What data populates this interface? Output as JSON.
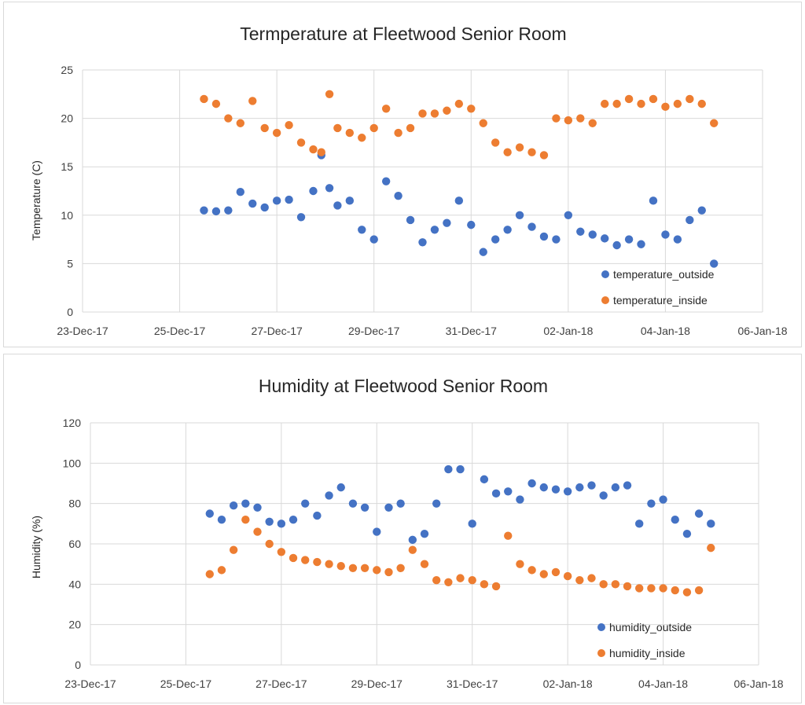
{
  "chart_data": [
    {
      "type": "scatter",
      "title": "Termperature at Fleetwood Senior Room",
      "xlabel": "",
      "ylabel": "Temperature (C)",
      "xlim": [
        "2017-12-23",
        "2018-01-06"
      ],
      "ylim": [
        0,
        25
      ],
      "yticks": [
        0,
        5,
        10,
        15,
        20,
        25
      ],
      "xtick_labels": [
        "23-Dec-17",
        "25-Dec-17",
        "27-Dec-17",
        "29-Dec-17",
        "31-Dec-17",
        "02-Jan-18",
        "04-Jan-18",
        "06-Jan-18"
      ],
      "grid": true,
      "legend_position": "bottom-right",
      "colors": {
        "outside": "#4472c4",
        "inside": "#ed7d31"
      },
      "series": [
        {
          "name": "temperature_outside",
          "x": [
            "2017-12-25 12:00",
            "2017-12-25 18:00",
            "2017-12-26 00:00",
            "2017-12-26 06:00",
            "2017-12-26 12:00",
            "2017-12-26 18:00",
            "2017-12-27 00:00",
            "2017-12-27 06:00",
            "2017-12-27 12:00",
            "2017-12-27 18:00",
            "2017-12-27 22:00",
            "2017-12-28 02:00",
            "2017-12-28 06:00",
            "2017-12-28 12:00",
            "2017-12-28 18:00",
            "2017-12-29 00:00",
            "2017-12-29 06:00",
            "2017-12-29 12:00",
            "2017-12-29 18:00",
            "2017-12-30 00:00",
            "2017-12-30 06:00",
            "2017-12-30 12:00",
            "2017-12-30 18:00",
            "2017-12-31 00:00",
            "2017-12-31 06:00",
            "2017-12-31 12:00",
            "2017-12-31 18:00",
            "2018-01-01 00:00",
            "2018-01-01 06:00",
            "2018-01-01 12:00",
            "2018-01-01 18:00",
            "2018-01-02 00:00",
            "2018-01-02 06:00",
            "2018-01-02 12:00",
            "2018-01-02 18:00",
            "2018-01-03 00:00",
            "2018-01-03 06:00",
            "2018-01-03 12:00",
            "2018-01-03 18:00",
            "2018-01-04 00:00",
            "2018-01-04 06:00",
            "2018-01-04 12:00",
            "2018-01-04 18:00",
            "2018-01-05 00:00"
          ],
          "y": [
            10.5,
            10.4,
            10.5,
            12.4,
            11.2,
            10.8,
            11.5,
            11.6,
            9.8,
            12.5,
            16.2,
            12.8,
            11.0,
            11.5,
            8.5,
            7.5,
            13.5,
            12.0,
            9.5,
            7.2,
            8.5,
            9.2,
            11.5,
            9.0,
            6.2,
            7.5,
            8.5,
            10.0,
            8.8,
            7.8,
            7.5,
            10.0,
            8.3,
            8.0,
            7.6,
            6.9,
            7.5,
            7.0,
            11.5,
            8.0,
            7.5,
            9.5,
            10.5,
            5.0
          ]
        },
        {
          "name": "temperature_inside",
          "x": [
            "2017-12-25 12:00",
            "2017-12-25 18:00",
            "2017-12-26 00:00",
            "2017-12-26 06:00",
            "2017-12-26 12:00",
            "2017-12-26 18:00",
            "2017-12-27 00:00",
            "2017-12-27 06:00",
            "2017-12-27 12:00",
            "2017-12-27 18:00",
            "2017-12-27 22:00",
            "2017-12-28 02:00",
            "2017-12-28 06:00",
            "2017-12-28 12:00",
            "2017-12-28 18:00",
            "2017-12-29 00:00",
            "2017-12-29 06:00",
            "2017-12-29 12:00",
            "2017-12-29 18:00",
            "2017-12-30 00:00",
            "2017-12-30 06:00",
            "2017-12-30 12:00",
            "2017-12-30 18:00",
            "2017-12-31 00:00",
            "2017-12-31 06:00",
            "2017-12-31 12:00",
            "2017-12-31 18:00",
            "2018-01-01 00:00",
            "2018-01-01 06:00",
            "2018-01-01 12:00",
            "2018-01-01 18:00",
            "2018-01-02 00:00",
            "2018-01-02 06:00",
            "2018-01-02 12:00",
            "2018-01-02 18:00",
            "2018-01-03 00:00",
            "2018-01-03 06:00",
            "2018-01-03 12:00",
            "2018-01-03 18:00",
            "2018-01-04 00:00",
            "2018-01-04 06:00",
            "2018-01-04 12:00",
            "2018-01-04 18:00",
            "2018-01-05 00:00"
          ],
          "y": [
            22.0,
            21.5,
            20.0,
            19.5,
            21.8,
            19.0,
            18.5,
            19.3,
            17.5,
            16.8,
            16.5,
            22.5,
            19.0,
            18.5,
            18.0,
            19.0,
            21.0,
            18.5,
            19.0,
            20.5,
            20.5,
            20.8,
            21.5,
            21.0,
            19.5,
            17.5,
            16.5,
            17.0,
            16.5,
            16.2,
            20.0,
            19.8,
            20.0,
            19.5,
            21.5,
            21.5,
            22.0,
            21.5,
            22.0,
            21.2,
            21.5,
            22.0,
            21.5,
            19.5
          ]
        }
      ]
    },
    {
      "type": "scatter",
      "title": "Humidity at Fleetwood Senior Room",
      "xlabel": "",
      "ylabel": "Humidity (%)",
      "xlim": [
        "2017-12-23",
        "2018-01-06"
      ],
      "ylim": [
        0,
        120
      ],
      "yticks": [
        0,
        20,
        40,
        60,
        80,
        100,
        120
      ],
      "xtick_labels": [
        "23-Dec-17",
        "25-Dec-17",
        "27-Dec-17",
        "29-Dec-17",
        "31-Dec-17",
        "02-Jan-18",
        "04-Jan-18",
        "06-Jan-18"
      ],
      "grid": true,
      "legend_position": "bottom-right",
      "colors": {
        "outside": "#4472c4",
        "inside": "#ed7d31"
      },
      "series": [
        {
          "name": "humidity_outside",
          "x": [
            "2017-12-25 12:00",
            "2017-12-25 18:00",
            "2017-12-26 00:00",
            "2017-12-26 06:00",
            "2017-12-26 12:00",
            "2017-12-26 18:00",
            "2017-12-27 00:00",
            "2017-12-27 06:00",
            "2017-12-27 12:00",
            "2017-12-27 18:00",
            "2017-12-28 00:00",
            "2017-12-28 06:00",
            "2017-12-28 12:00",
            "2017-12-28 18:00",
            "2017-12-29 00:00",
            "2017-12-29 06:00",
            "2017-12-29 12:00",
            "2017-12-29 18:00",
            "2017-12-30 00:00",
            "2017-12-30 06:00",
            "2017-12-30 12:00",
            "2017-12-30 18:00",
            "2017-12-31 00:00",
            "2017-12-31 06:00",
            "2017-12-31 12:00",
            "2017-12-31 18:00",
            "2018-01-01 00:00",
            "2018-01-01 06:00",
            "2018-01-01 12:00",
            "2018-01-01 18:00",
            "2018-01-02 00:00",
            "2018-01-02 06:00",
            "2018-01-02 12:00",
            "2018-01-02 18:00",
            "2018-01-03 00:00",
            "2018-01-03 06:00",
            "2018-01-03 12:00",
            "2018-01-03 18:00",
            "2018-01-04 00:00",
            "2018-01-04 06:00",
            "2018-01-04 12:00",
            "2018-01-04 18:00",
            "2018-01-05 00:00"
          ],
          "y": [
            75,
            72,
            79,
            80,
            78,
            71,
            70,
            72,
            80,
            74,
            84,
            88,
            80,
            78,
            66,
            78,
            80,
            62,
            65,
            80,
            97,
            97,
            70,
            92,
            85,
            86,
            82,
            90,
            88,
            87,
            86,
            88,
            89,
            84,
            88,
            89,
            70,
            80,
            82,
            72,
            65,
            75,
            70
          ]
        },
        {
          "name": "humidity_inside",
          "x": [
            "2017-12-25 12:00",
            "2017-12-25 18:00",
            "2017-12-26 00:00",
            "2017-12-26 06:00",
            "2017-12-26 12:00",
            "2017-12-26 18:00",
            "2017-12-27 00:00",
            "2017-12-27 06:00",
            "2017-12-27 12:00",
            "2017-12-27 18:00",
            "2017-12-28 00:00",
            "2017-12-28 06:00",
            "2017-12-28 12:00",
            "2017-12-28 18:00",
            "2017-12-29 00:00",
            "2017-12-29 06:00",
            "2017-12-29 12:00",
            "2017-12-29 18:00",
            "2017-12-30 00:00",
            "2017-12-30 06:00",
            "2017-12-30 12:00",
            "2017-12-30 18:00",
            "2017-12-31 00:00",
            "2017-12-31 06:00",
            "2017-12-31 12:00",
            "2017-12-31 18:00",
            "2018-01-01 00:00",
            "2018-01-01 06:00",
            "2018-01-01 12:00",
            "2018-01-01 18:00",
            "2018-01-02 00:00",
            "2018-01-02 06:00",
            "2018-01-02 12:00",
            "2018-01-02 18:00",
            "2018-01-03 00:00",
            "2018-01-03 06:00",
            "2018-01-03 12:00",
            "2018-01-03 18:00",
            "2018-01-04 00:00",
            "2018-01-04 06:00",
            "2018-01-04 12:00",
            "2018-01-04 18:00",
            "2018-01-05 00:00"
          ],
          "y": [
            45,
            47,
            57,
            72,
            66,
            60,
            56,
            53,
            52,
            51,
            50,
            49,
            48,
            48,
            47,
            46,
            48,
            57,
            50,
            42,
            41,
            43,
            42,
            40,
            39,
            64,
            50,
            47,
            45,
            46,
            44,
            42,
            43,
            40,
            40,
            39,
            38,
            38,
            38,
            37,
            36,
            37,
            58
          ]
        }
      ]
    }
  ]
}
